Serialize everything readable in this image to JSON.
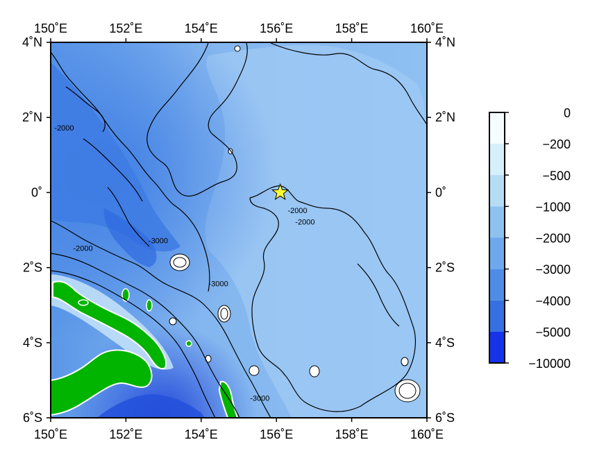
{
  "map": {
    "lon_range": [
      150,
      160
    ],
    "lat_range": [
      -6,
      4
    ],
    "lon_ticks": [
      {
        "value": 150,
        "label": "150˚E"
      },
      {
        "value": 152,
        "label": "152˚E"
      },
      {
        "value": 154,
        "label": "154˚E"
      },
      {
        "value": 156,
        "label": "156˚E"
      },
      {
        "value": 158,
        "label": "158˚E"
      },
      {
        "value": 160,
        "label": "160˚E"
      }
    ],
    "lat_ticks": [
      {
        "value": 4,
        "label": "4˚N"
      },
      {
        "value": 2,
        "label": "2˚N"
      },
      {
        "value": 0,
        "label": "0˚"
      },
      {
        "value": -2,
        "label": "2˚S"
      },
      {
        "value": -4,
        "label": "4˚S"
      },
      {
        "value": -6,
        "label": "6˚S"
      }
    ],
    "contour_labels": [
      {
        "text": "-2000",
        "lon": 150.1,
        "lat": 1.65
      },
      {
        "text": "-2000",
        "lon": 150.6,
        "lat": -1.55
      },
      {
        "text": "-3000",
        "lon": 152.6,
        "lat": -1.35
      },
      {
        "text": "-3000",
        "lon": 154.2,
        "lat": -2.5
      },
      {
        "text": "-2000",
        "lon": 156.3,
        "lat": -0.55
      },
      {
        "text": "-2000",
        "lon": 156.5,
        "lat": -0.85
      },
      {
        "text": "-3000",
        "lon": 155.3,
        "lat": -5.55
      }
    ],
    "marker": {
      "type": "star",
      "lon": 156.1,
      "lat": 0.0,
      "color": "#ffff33"
    },
    "land_color": "#00b400",
    "ocean_color_shallow": "#a8d2f5",
    "ocean_color_deep": "#2f6fe0"
  },
  "colorbar": {
    "labels": [
      "0",
      "−200",
      "−500",
      "−1000",
      "−2000",
      "−3000",
      "−4000",
      "−5000",
      "−10000"
    ],
    "colors": [
      "#f5fdff",
      "#d6f0fb",
      "#b4dcf5",
      "#8dc2f0",
      "#6ea8ec",
      "#4f8ce6",
      "#3670e0",
      "#1533e8"
    ]
  }
}
